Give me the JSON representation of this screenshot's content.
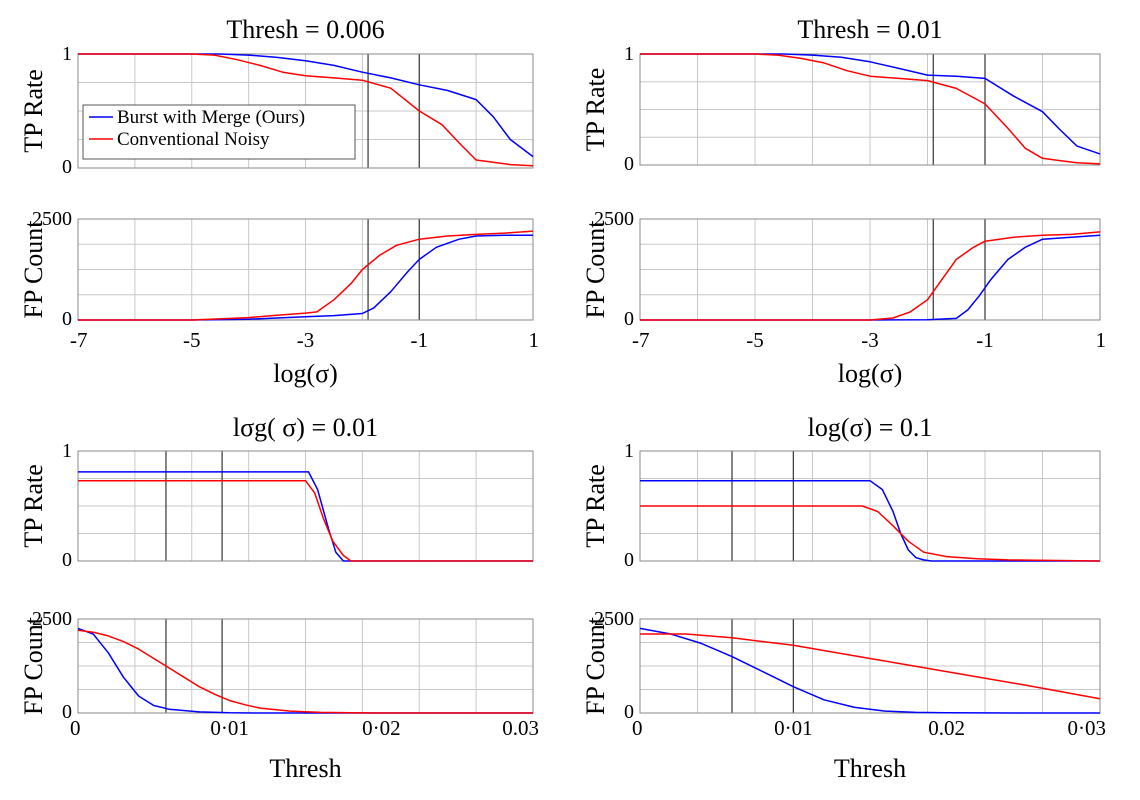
{
  "chart_data": [
    {
      "type": "line",
      "title": "Thresh = 0.006",
      "x_ticks": [
        "-7",
        "-5",
        "-3",
        "-1",
        "1"
      ],
      "xlabel": "log(σ)",
      "xlim": [
        -7,
        1
      ],
      "vlines": [
        -1.9,
        -1
      ],
      "legend": {
        "placement": "top-left",
        "entries": [
          "Burst with Merge (Ours)",
          "Conventional Noisy"
        ]
      },
      "series_colors": [
        "#0000ff",
        "#ff0000"
      ],
      "top": {
        "ylabel": "TP Rate",
        "ylim": [
          0,
          1
        ],
        "y_ticks": [
          "0",
          "1"
        ],
        "series": [
          {
            "name": "Burst with Merge (Ours)",
            "x": [
              -7,
              -5,
              -4.5,
              -4,
              -3.5,
              -3,
              -2.5,
              -2,
              -1.5,
              -1,
              -0.5,
              0,
              0.3,
              0.6,
              1
            ],
            "y": [
              1,
              1,
              1,
              0.99,
              0.97,
              0.94,
              0.9,
              0.84,
              0.79,
              0.73,
              0.68,
              0.6,
              0.45,
              0.25,
              0.1
            ]
          },
          {
            "name": "Conventional Noisy",
            "x": [
              -7,
              -5,
              -4.6,
              -4.2,
              -3.8,
              -3.4,
              -3,
              -2.5,
              -2,
              -1.5,
              -1,
              -0.6,
              -0.3,
              0,
              0.3,
              0.6,
              1
            ],
            "y": [
              1,
              1,
              0.99,
              0.95,
              0.9,
              0.84,
              0.81,
              0.79,
              0.77,
              0.7,
              0.5,
              0.38,
              0.22,
              0.07,
              0.05,
              0.03,
              0.02
            ]
          }
        ]
      },
      "bottom": {
        "ylabel": "FP Count",
        "ylim": [
          0,
          2500
        ],
        "y_ticks": [
          "0",
          "2500"
        ],
        "series": [
          {
            "name": "Burst with Merge (Ours)",
            "x": [
              -7,
              -5,
              -4,
              -3.5,
              -3,
              -2.5,
              -2,
              -1.8,
              -1.5,
              -1.2,
              -1,
              -0.7,
              -0.3,
              0,
              0.5,
              1
            ],
            "y": [
              0,
              0,
              20,
              50,
              80,
              110,
              160,
              300,
              700,
              1200,
              1500,
              1800,
              2000,
              2080,
              2100,
              2100
            ]
          },
          {
            "name": "Conventional Noisy",
            "x": [
              -7,
              -5,
              -4,
              -3.5,
              -3,
              -2.8,
              -2.5,
              -2.2,
              -2,
              -1.7,
              -1.4,
              -1,
              -0.5,
              0,
              0.5,
              1
            ],
            "y": [
              0,
              0,
              60,
              120,
              170,
              200,
              500,
              900,
              1250,
              1600,
              1850,
              2000,
              2080,
              2120,
              2150,
              2200
            ]
          }
        ]
      }
    },
    {
      "type": "line",
      "title": "Thresh = 0.01",
      "x_ticks": [
        "-7",
        "-5",
        "-3",
        "-1",
        "1"
      ],
      "xlabel": "log(σ)",
      "xlim": [
        -7,
        1
      ],
      "vlines": [
        -1.9,
        -1
      ],
      "series_colors": [
        "#0000ff",
        "#ff0000"
      ],
      "top": {
        "ylabel": "TP Rate",
        "ylim": [
          0,
          1
        ],
        "y_ticks": [
          "0",
          "1"
        ],
        "series": [
          {
            "name": "Burst with Merge (Ours)",
            "x": [
              -7,
              -5,
              -4.5,
              -4,
              -3.5,
              -3,
              -2.5,
              -2,
              -1.5,
              -1,
              -0.5,
              0,
              0.3,
              0.6,
              1
            ],
            "y": [
              1,
              1,
              1,
              0.99,
              0.97,
              0.93,
              0.87,
              0.81,
              0.8,
              0.78,
              0.62,
              0.48,
              0.32,
              0.17,
              0.1
            ]
          },
          {
            "name": "Conventional Noisy",
            "x": [
              -7,
              -5,
              -4.6,
              -4.2,
              -3.8,
              -3.4,
              -3,
              -2.5,
              -2,
              -1.5,
              -1,
              -0.6,
              -0.3,
              0,
              0.3,
              0.6,
              1
            ],
            "y": [
              1,
              1,
              0.99,
              0.96,
              0.92,
              0.85,
              0.8,
              0.78,
              0.76,
              0.69,
              0.55,
              0.33,
              0.15,
              0.06,
              0.04,
              0.02,
              0.01
            ]
          }
        ]
      },
      "bottom": {
        "ylabel": "FP Count",
        "ylim": [
          0,
          2500
        ],
        "y_ticks": [
          "0",
          "2500"
        ],
        "series": [
          {
            "name": "Burst with Merge (Ours)",
            "x": [
              -7,
              -5,
              -3,
              -2,
              -1.5,
              -1.3,
              -1.1,
              -0.9,
              -0.6,
              -0.3,
              0,
              0.5,
              1
            ],
            "y": [
              0,
              0,
              0,
              5,
              40,
              250,
              600,
              1000,
              1500,
              1800,
              2000,
              2050,
              2100
            ]
          },
          {
            "name": "Conventional Noisy",
            "x": [
              -7,
              -5,
              -3,
              -2.6,
              -2.3,
              -2,
              -1.8,
              -1.5,
              -1.2,
              -1,
              -0.5,
              0,
              0.5,
              1
            ],
            "y": [
              0,
              0,
              0,
              50,
              200,
              500,
              900,
              1500,
              1800,
              1950,
              2050,
              2100,
              2120,
              2180
            ]
          }
        ]
      }
    },
    {
      "type": "line",
      "title": "lσg(  σ) = 0.01",
      "x_ticks": [
        "0",
        "0·01",
        "0·02",
        "0.03"
      ],
      "xlabel": "Thresh",
      "xlim": [
        0,
        0.03
      ],
      "vlines": [
        0.0058,
        0.0095
      ],
      "series_colors": [
        "#0000ff",
        "#ff0000"
      ],
      "top": {
        "ylabel": "TP Rate",
        "ylim": [
          0,
          1
        ],
        "y_ticks": [
          "0",
          "1"
        ],
        "series": [
          {
            "name": "Burst with Merge (Ours)",
            "x": [
              0,
              0.005,
              0.01,
              0.0152,
              0.0158,
              0.0165,
              0.017,
              0.0175,
              0.03
            ],
            "y": [
              0.81,
              0.81,
              0.81,
              0.81,
              0.65,
              0.3,
              0.08,
              0,
              0
            ]
          },
          {
            "name": "Conventional Noisy",
            "x": [
              0,
              0.005,
              0.01,
              0.015,
              0.0156,
              0.0162,
              0.0168,
              0.0175,
              0.018,
              0.03
            ],
            "y": [
              0.73,
              0.73,
              0.73,
              0.73,
              0.62,
              0.38,
              0.18,
              0.05,
              0,
              0
            ]
          }
        ]
      },
      "bottom": {
        "ylabel": "FP Count",
        "ylim": [
          0,
          2500
        ],
        "y_ticks": [
          "0",
          "2500"
        ],
        "series": [
          {
            "name": "Burst with Merge (Ours)",
            "x": [
              0,
              0.001,
              0.002,
              0.003,
              0.004,
              0.005,
              0.006,
              0.008,
              0.01,
              0.012,
              0.03
            ],
            "y": [
              2250,
              2100,
              1600,
              950,
              450,
              200,
              100,
              30,
              5,
              0,
              0
            ]
          },
          {
            "name": "Conventional Noisy",
            "x": [
              0,
              0.001,
              0.002,
              0.003,
              0.004,
              0.005,
              0.006,
              0.007,
              0.008,
              0.009,
              0.01,
              0.011,
              0.012,
              0.014,
              0.016,
              0.018,
              0.02,
              0.03
            ],
            "y": [
              2200,
              2150,
              2050,
              1900,
              1700,
              1450,
              1200,
              950,
              700,
              500,
              330,
              220,
              130,
              50,
              15,
              5,
              0,
              0
            ]
          }
        ]
      }
    },
    {
      "type": "line",
      "title": "log(σ) = 0.1",
      "x_ticks": [
        "0",
        "0·01",
        "0.02",
        "0·03"
      ],
      "xlabel": "Thresh",
      "xlim": [
        0,
        0.03
      ],
      "vlines": [
        0.006,
        0.01
      ],
      "series_colors": [
        "#0000ff",
        "#ff0000"
      ],
      "top": {
        "ylabel": "TP Rate",
        "ylim": [
          0,
          1
        ],
        "y_ticks": [
          "0",
          "1"
        ],
        "series": [
          {
            "name": "Burst with Merge (Ours)",
            "x": [
              0,
              0.01,
              0.015,
              0.0158,
              0.0165,
              0.017,
              0.0175,
              0.018,
              0.0185,
              0.019,
              0.03
            ],
            "y": [
              0.73,
              0.73,
              0.73,
              0.65,
              0.45,
              0.25,
              0.1,
              0.03,
              0.01,
              0,
              0
            ]
          },
          {
            "name": "Conventional Noisy",
            "x": [
              0,
              0.01,
              0.0145,
              0.0155,
              0.0165,
              0.0175,
              0.0185,
              0.02,
              0.022,
              0.024,
              0.03
            ],
            "y": [
              0.5,
              0.5,
              0.5,
              0.45,
              0.32,
              0.18,
              0.08,
              0.04,
              0.02,
              0.01,
              0
            ]
          }
        ]
      },
      "bottom": {
        "ylabel": "FP Count",
        "ylim": [
          0,
          2500
        ],
        "y_ticks": [
          "0",
          "2500"
        ],
        "series": [
          {
            "name": "Burst with Merge (Ours)",
            "x": [
              0,
              0.002,
              0.004,
              0.006,
              0.008,
              0.01,
              0.012,
              0.014,
              0.016,
              0.018,
              0.02,
              0.025,
              0.03
            ],
            "y": [
              2250,
              2100,
              1850,
              1500,
              1100,
              700,
              350,
              150,
              50,
              15,
              5,
              0,
              0
            ]
          },
          {
            "name": "Conventional Noisy",
            "x": [
              0,
              0.003,
              0.006,
              0.01,
              0.015,
              0.02,
              0.025,
              0.03
            ],
            "y": [
              2100,
              2100,
              2000,
              1800,
              1450,
              1100,
              750,
              380
            ]
          }
        ]
      }
    }
  ]
}
